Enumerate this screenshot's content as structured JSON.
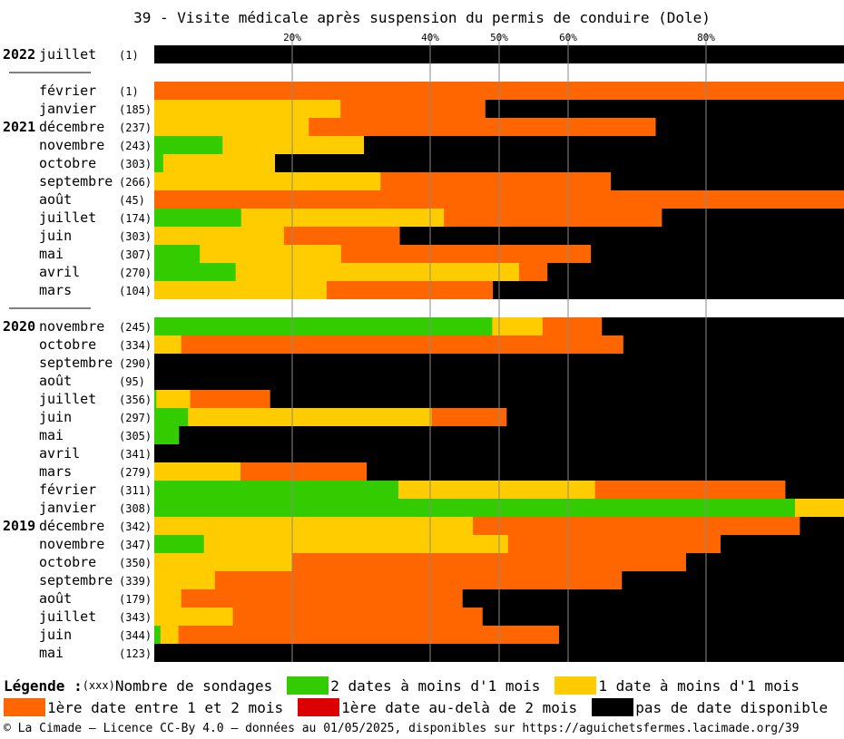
{
  "chart_data": {
    "type": "bar",
    "orientation": "horizontal-stacked-percent",
    "title": "39 - Visite médicale après suspension du permis de conduire (Dole)",
    "x_ticks": [
      "20%",
      "40%",
      "50%",
      "60%",
      "80%"
    ],
    "xlim": [
      0,
      100
    ],
    "grid": true,
    "series_keys": [
      "deux",
      "une",
      "entre",
      "audela",
      "aucune"
    ],
    "rows": [
      {
        "year": "2022",
        "month": "juillet",
        "count": "(1)",
        "values": [
          0,
          0,
          0,
          0,
          100
        ]
      },
      {
        "year": "2022",
        "sep": true
      },
      {
        "year": "2021",
        "month": "février",
        "count": "(1)",
        "values": [
          0,
          0,
          100,
          0,
          0
        ]
      },
      {
        "year": "2021",
        "month": "janvier",
        "count": "(185)",
        "values": [
          0,
          27,
          21,
          0,
          52
        ]
      },
      {
        "year": "2021",
        "month": "décembre",
        "count": "(237)",
        "label": "2021",
        "values": [
          0,
          22.4,
          50.3,
          0,
          27.3
        ]
      },
      {
        "year": "2021",
        "month": "novembre",
        "count": "(243)",
        "values": [
          9.9,
          20.5,
          0,
          0,
          69.6
        ]
      },
      {
        "year": "2021",
        "month": "octobre",
        "count": "(303)",
        "values": [
          1.3,
          16.2,
          0,
          0,
          82.5
        ]
      },
      {
        "year": "2021",
        "month": "septembre",
        "count": "(266)",
        "values": [
          0,
          32.8,
          33.4,
          0,
          33.8
        ]
      },
      {
        "year": "2021",
        "month": "août",
        "count": "(45)",
        "values": [
          0,
          0,
          100,
          0,
          0
        ]
      },
      {
        "year": "2021",
        "month": "juillet",
        "count": "(174)",
        "values": [
          12.6,
          29.4,
          31.6,
          0,
          26.4
        ]
      },
      {
        "year": "2021",
        "month": "juin",
        "count": "(303)",
        "values": [
          0,
          18.8,
          16.8,
          0,
          64.4
        ]
      },
      {
        "year": "2021",
        "month": "mai",
        "count": "(307)",
        "values": [
          6.6,
          20.5,
          36.2,
          0,
          36.7
        ]
      },
      {
        "year": "2021",
        "month": "avril",
        "count": "(270)",
        "values": [
          11.8,
          41.1,
          4.1,
          0,
          43
        ]
      },
      {
        "year": "2021",
        "month": "mars",
        "count": "(104)",
        "values": [
          0,
          25,
          24.1,
          0,
          50.9
        ]
      },
      {
        "year": "2021",
        "sep": true
      },
      {
        "year": "2020",
        "month": "novembre",
        "count": "(245)",
        "label": "2020",
        "values": [
          49,
          7.3,
          8.6,
          0,
          35.1
        ]
      },
      {
        "year": "2020",
        "month": "octobre",
        "count": "(334)",
        "values": [
          0,
          3.9,
          64.1,
          0,
          32
        ]
      },
      {
        "year": "2020",
        "month": "septembre",
        "count": "(290)",
        "values": [
          0,
          0,
          0,
          0,
          100
        ]
      },
      {
        "year": "2020",
        "month": "août",
        "count": "(95)",
        "values": [
          0,
          0,
          0,
          0,
          100
        ]
      },
      {
        "year": "2020",
        "month": "juillet",
        "count": "(356)",
        "values": [
          0.3,
          4.9,
          11.6,
          0,
          83.2
        ]
      },
      {
        "year": "2020",
        "month": "juin",
        "count": "(297)",
        "values": [
          4.9,
          35.3,
          10.9,
          0,
          48.9
        ]
      },
      {
        "year": "2020",
        "month": "mai",
        "count": "(305)",
        "values": [
          3.6,
          0,
          0,
          0,
          96.4
        ]
      },
      {
        "year": "2020",
        "month": "avril",
        "count": "(341)",
        "values": [
          0,
          0,
          0,
          0,
          100
        ]
      },
      {
        "year": "2020",
        "month": "mars",
        "count": "(279)",
        "values": [
          0,
          12.5,
          18.3,
          0,
          69.2
        ]
      },
      {
        "year": "2020",
        "month": "février",
        "count": "(311)",
        "values": [
          35.4,
          28.5,
          27.6,
          0,
          8.5
        ]
      },
      {
        "year": "2020",
        "month": "janvier",
        "count": "(308)",
        "values": [
          92.9,
          7.1,
          0,
          0,
          0
        ]
      },
      {
        "year": "2019",
        "month": "décembre",
        "count": "(342)",
        "label": "2019",
        "values": [
          0,
          46.2,
          47.4,
          0,
          6.4
        ]
      },
      {
        "year": "2019",
        "month": "novembre",
        "count": "(347)",
        "values": [
          7.2,
          44.1,
          30.8,
          0,
          17.9
        ]
      },
      {
        "year": "2019",
        "month": "octobre",
        "count": "(350)",
        "values": [
          0,
          20,
          57.1,
          0,
          22.9
        ]
      },
      {
        "year": "2019",
        "month": "septembre",
        "count": "(339)",
        "values": [
          0,
          8.8,
          59,
          0,
          32.2
        ]
      },
      {
        "year": "2019",
        "month": "août",
        "count": "(179)",
        "values": [
          0,
          3.9,
          40.8,
          0,
          55.3
        ]
      },
      {
        "year": "2019",
        "month": "juillet",
        "count": "(343)",
        "values": [
          0,
          11.4,
          36.2,
          0,
          52.4
        ]
      },
      {
        "year": "2019",
        "month": "juin",
        "count": "(344)",
        "values": [
          0.9,
          2.6,
          55.2,
          0,
          41.3
        ]
      },
      {
        "year": "2019",
        "month": "mai",
        "count": "(123)",
        "values": [
          0,
          0,
          0,
          0,
          100
        ]
      }
    ],
    "year_labels": {
      "2022": "2022",
      "2021": "2021",
      "2020": "2020",
      "2019": "2019"
    }
  },
  "colors": {
    "deux": "#33cc00",
    "une": "#ffcc00",
    "entre": "#ff6600",
    "audela": "#dd0000",
    "aucune": "#000000"
  },
  "legend": {
    "title": "Légende :",
    "count_marker": "(xxx)",
    "count_label": "Nombre de sondages",
    "deux": "2 dates à moins d'1 mois",
    "une": "1 date à moins d'1 mois",
    "entre": "1ère date entre 1 et 2 mois",
    "audela": "1ère date au-delà de 2 mois",
    "aucune": "pas de date disponible"
  },
  "footer": "© La Cimade — Licence CC-By 4.0 — données au 01/05/2025, disponibles sur https://aguichetsfermes.lacimade.org/39"
}
